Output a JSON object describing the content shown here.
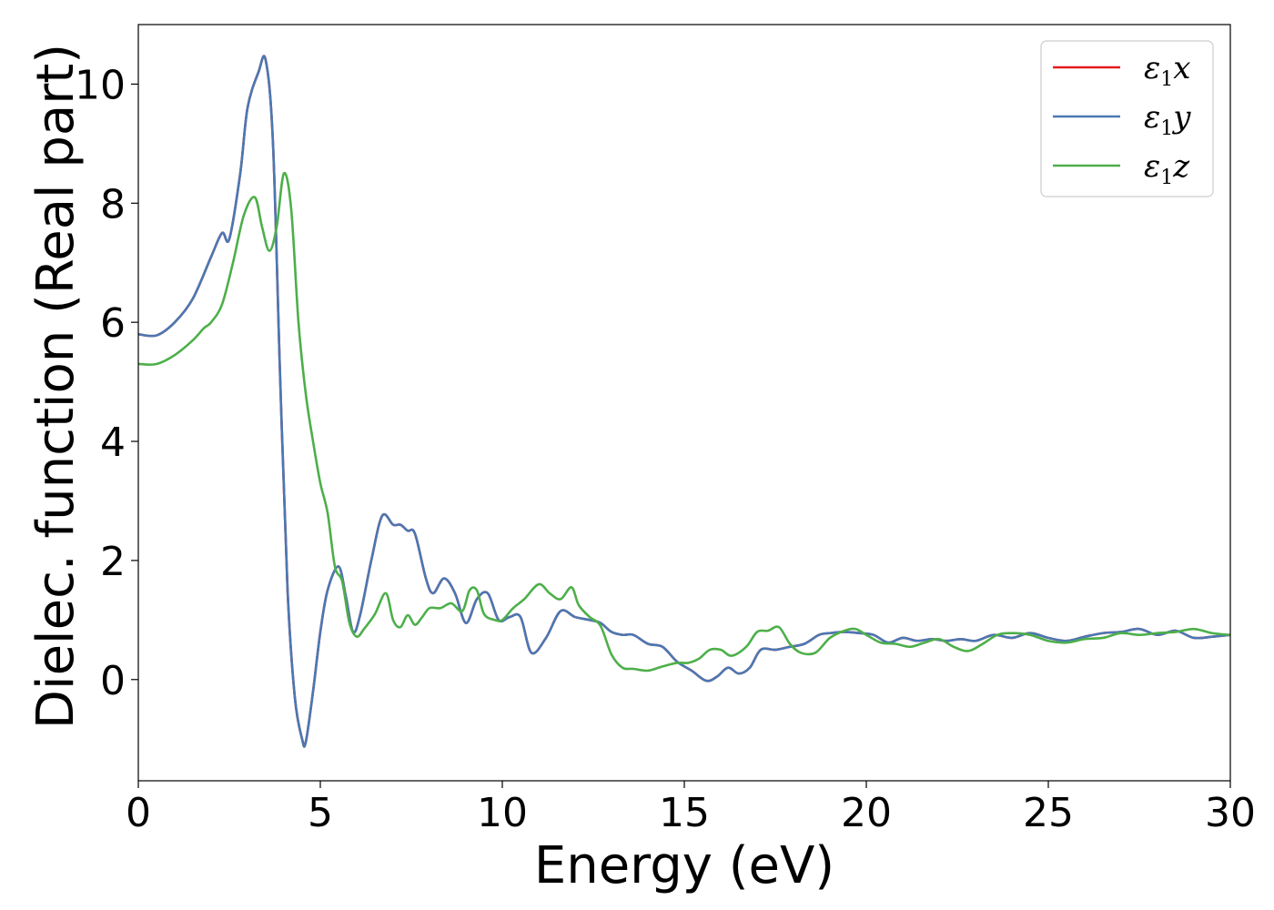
{
  "chart_data": {
    "type": "line",
    "xlabel": "Energy (eV)",
    "ylabel": "Dielec. function (Real part)",
    "xlim": [
      0,
      30
    ],
    "ylim": [
      -1.7,
      11.0
    ],
    "x_ticks": [
      0,
      5,
      10,
      15,
      20,
      25,
      30
    ],
    "x_tick_labels": [
      "0",
      "5",
      "10",
      "15",
      "20",
      "25",
      "30"
    ],
    "y_ticks": [
      0,
      2,
      4,
      6,
      8,
      10
    ],
    "y_tick_labels": [
      "0",
      "2",
      "4",
      "6",
      "8",
      "10"
    ],
    "grid": false,
    "legend_position": "top-right",
    "legend": [
      {
        "symbol": "ε",
        "sub": "1",
        "var": "x",
        "color": "#e41a1c"
      },
      {
        "symbol": "ε",
        "sub": "1",
        "var": "y",
        "color": "#4a78b3"
      },
      {
        "symbol": "ε",
        "sub": "1",
        "var": "z",
        "color": "#4daf4a"
      }
    ],
    "series": [
      {
        "name": "ε1x",
        "color": "#e41a1c",
        "x": [
          0,
          0.5,
          1.0,
          1.5,
          2.0,
          2.3,
          2.5,
          2.8,
          3.0,
          3.3,
          3.5,
          3.7,
          3.9,
          4.1,
          4.3,
          4.5,
          4.6,
          4.8,
          5.0,
          5.2,
          5.5,
          5.7,
          5.9,
          6.1,
          6.4,
          6.7,
          7.0,
          7.2,
          7.4,
          7.6,
          7.9,
          8.1,
          8.4,
          8.7,
          9.0,
          9.3,
          9.6,
          9.9,
          10.2,
          10.5,
          10.8,
          11.2,
          11.6,
          12.0,
          12.4,
          12.7,
          13.0,
          13.3,
          13.6,
          14.0,
          14.4,
          14.8,
          15.2,
          15.6,
          15.9,
          16.2,
          16.5,
          16.8,
          17.1,
          17.5,
          17.9,
          18.3,
          18.7,
          19.0,
          19.4,
          19.8,
          20.2,
          20.6,
          21.0,
          21.4,
          21.8,
          22.2,
          22.6,
          23.0,
          23.5,
          24.0,
          24.5,
          25.0,
          25.5,
          26.0,
          26.5,
          27.0,
          27.5,
          28.0,
          28.5,
          29.0,
          29.5,
          30.0
        ],
        "y": [
          5.8,
          5.78,
          6.0,
          6.4,
          7.1,
          7.5,
          7.4,
          8.5,
          9.6,
          10.2,
          10.4,
          9.0,
          5.0,
          1.5,
          -0.3,
          -1.0,
          -1.05,
          -0.2,
          0.8,
          1.5,
          1.9,
          1.4,
          0.8,
          1.1,
          2.0,
          2.75,
          2.6,
          2.6,
          2.5,
          2.45,
          1.7,
          1.45,
          1.7,
          1.45,
          0.95,
          1.35,
          1.45,
          1.0,
          1.05,
          1.05,
          0.45,
          0.7,
          1.15,
          1.05,
          1.0,
          0.95,
          0.8,
          0.75,
          0.75,
          0.6,
          0.55,
          0.3,
          0.15,
          -0.02,
          0.05,
          0.2,
          0.1,
          0.2,
          0.5,
          0.5,
          0.55,
          0.6,
          0.75,
          0.78,
          0.8,
          0.78,
          0.75,
          0.62,
          0.7,
          0.65,
          0.68,
          0.65,
          0.68,
          0.65,
          0.75,
          0.7,
          0.78,
          0.7,
          0.65,
          0.72,
          0.78,
          0.8,
          0.85,
          0.75,
          0.82,
          0.7,
          0.72,
          0.75
        ]
      },
      {
        "name": "ε1y",
        "color": "#4a78b3",
        "x": [
          0,
          0.5,
          1.0,
          1.5,
          2.0,
          2.3,
          2.5,
          2.8,
          3.0,
          3.3,
          3.5,
          3.7,
          3.9,
          4.1,
          4.3,
          4.5,
          4.6,
          4.8,
          5.0,
          5.2,
          5.5,
          5.7,
          5.9,
          6.1,
          6.4,
          6.7,
          7.0,
          7.2,
          7.4,
          7.6,
          7.9,
          8.1,
          8.4,
          8.7,
          9.0,
          9.3,
          9.6,
          9.9,
          10.2,
          10.5,
          10.8,
          11.2,
          11.6,
          12.0,
          12.4,
          12.7,
          13.0,
          13.3,
          13.6,
          14.0,
          14.4,
          14.8,
          15.2,
          15.6,
          15.9,
          16.2,
          16.5,
          16.8,
          17.1,
          17.5,
          17.9,
          18.3,
          18.7,
          19.0,
          19.4,
          19.8,
          20.2,
          20.6,
          21.0,
          21.4,
          21.8,
          22.2,
          22.6,
          23.0,
          23.5,
          24.0,
          24.5,
          25.0,
          25.5,
          26.0,
          26.5,
          27.0,
          27.5,
          28.0,
          28.5,
          29.0,
          29.5,
          30.0
        ],
        "y": [
          5.8,
          5.78,
          6.0,
          6.4,
          7.1,
          7.5,
          7.4,
          8.5,
          9.6,
          10.2,
          10.4,
          9.0,
          5.0,
          1.5,
          -0.3,
          -1.0,
          -1.05,
          -0.2,
          0.8,
          1.5,
          1.9,
          1.4,
          0.8,
          1.1,
          2.0,
          2.75,
          2.6,
          2.6,
          2.5,
          2.45,
          1.7,
          1.45,
          1.7,
          1.45,
          0.95,
          1.35,
          1.45,
          1.0,
          1.05,
          1.05,
          0.45,
          0.7,
          1.15,
          1.05,
          1.0,
          0.95,
          0.8,
          0.75,
          0.75,
          0.6,
          0.55,
          0.3,
          0.15,
          -0.02,
          0.05,
          0.2,
          0.1,
          0.2,
          0.5,
          0.5,
          0.55,
          0.6,
          0.75,
          0.78,
          0.8,
          0.78,
          0.75,
          0.62,
          0.7,
          0.65,
          0.68,
          0.65,
          0.68,
          0.65,
          0.75,
          0.7,
          0.78,
          0.7,
          0.65,
          0.72,
          0.78,
          0.8,
          0.85,
          0.75,
          0.82,
          0.7,
          0.72,
          0.75
        ]
      },
      {
        "name": "ε1z",
        "color": "#4daf4a",
        "x": [
          0,
          0.5,
          1.0,
          1.5,
          1.8,
          2.0,
          2.3,
          2.6,
          2.9,
          3.2,
          3.4,
          3.6,
          3.8,
          4.0,
          4.2,
          4.4,
          4.6,
          4.8,
          5.0,
          5.2,
          5.4,
          5.6,
          5.8,
          6.0,
          6.2,
          6.5,
          6.8,
          7.0,
          7.2,
          7.4,
          7.6,
          7.8,
          8.0,
          8.3,
          8.6,
          8.9,
          9.1,
          9.3,
          9.5,
          9.8,
          10.0,
          10.3,
          10.6,
          11.0,
          11.3,
          11.6,
          11.9,
          12.1,
          12.4,
          12.7,
          13.0,
          13.3,
          13.6,
          14.0,
          14.4,
          14.8,
          15.1,
          15.4,
          15.7,
          16.0,
          16.3,
          16.7,
          17.0,
          17.3,
          17.6,
          17.9,
          18.2,
          18.6,
          19.0,
          19.4,
          19.7,
          20.0,
          20.4,
          20.8,
          21.2,
          21.6,
          22.0,
          22.4,
          22.8,
          23.2,
          23.6,
          24.0,
          24.5,
          25.0,
          25.5,
          26.0,
          26.5,
          27.0,
          27.5,
          28.0,
          28.5,
          29.0,
          29.5,
          30.0
        ],
        "y": [
          5.3,
          5.3,
          5.45,
          5.7,
          5.9,
          6.0,
          6.3,
          7.0,
          7.8,
          8.1,
          7.6,
          7.2,
          7.6,
          8.5,
          7.9,
          6.0,
          4.8,
          4.0,
          3.3,
          2.8,
          1.9,
          1.65,
          0.95,
          0.72,
          0.85,
          1.1,
          1.45,
          1.0,
          0.88,
          1.08,
          0.92,
          1.05,
          1.2,
          1.2,
          1.28,
          1.15,
          1.5,
          1.5,
          1.1,
          1.0,
          1.0,
          1.2,
          1.35,
          1.6,
          1.45,
          1.35,
          1.55,
          1.25,
          1.05,
          0.9,
          0.42,
          0.2,
          0.18,
          0.15,
          0.22,
          0.28,
          0.28,
          0.35,
          0.5,
          0.5,
          0.4,
          0.55,
          0.8,
          0.82,
          0.88,
          0.6,
          0.45,
          0.45,
          0.7,
          0.82,
          0.85,
          0.75,
          0.62,
          0.6,
          0.55,
          0.62,
          0.68,
          0.55,
          0.48,
          0.6,
          0.75,
          0.78,
          0.75,
          0.65,
          0.62,
          0.68,
          0.7,
          0.78,
          0.75,
          0.78,
          0.8,
          0.85,
          0.78,
          0.75
        ]
      }
    ]
  }
}
